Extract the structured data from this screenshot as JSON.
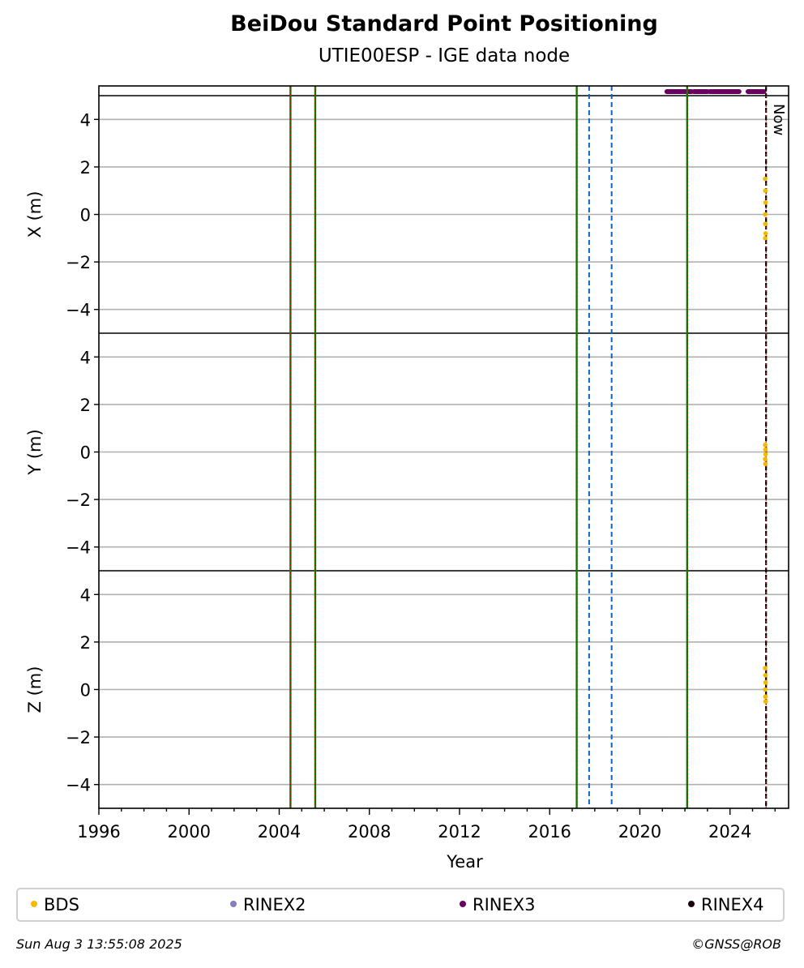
{
  "chart_data": {
    "type": "scatter",
    "title": "BeiDou Standard Point Positioning",
    "subtitle": "UTIE00ESP - IGE data node",
    "xlabel": "Year",
    "xlim": [
      1996.0,
      2026.6
    ],
    "x_ticks": [
      1996,
      2000,
      2004,
      2008,
      2012,
      2016,
      2020,
      2024
    ],
    "x_tick_labels": [
      "1996",
      "2000",
      "2004",
      "2008",
      "2012",
      "2016",
      "2020",
      "2024"
    ],
    "panels": [
      {
        "ylabel": "X (m)",
        "ylim": [
          -5,
          5
        ],
        "bds_points": [
          [
            2025.56,
            1.5
          ],
          [
            2025.57,
            1.0
          ],
          [
            2025.58,
            0.5
          ],
          [
            2025.56,
            0.0
          ],
          [
            2025.57,
            -0.4
          ],
          [
            2025.58,
            -0.8
          ],
          [
            2025.56,
            -1.0
          ]
        ]
      },
      {
        "ylabel": "Y (m)",
        "ylim": [
          -5,
          5
        ],
        "bds_points": [
          [
            2025.56,
            0.3
          ],
          [
            2025.57,
            0.1
          ],
          [
            2025.58,
            -0.1
          ],
          [
            2025.56,
            -0.3
          ],
          [
            2025.57,
            -0.5
          ]
        ]
      },
      {
        "ylabel": "Z (m)",
        "ylim": [
          -5,
          5
        ],
        "bds_points": [
          [
            2025.56,
            0.9
          ],
          [
            2025.57,
            0.6
          ],
          [
            2025.58,
            0.3
          ],
          [
            2025.56,
            0.0
          ],
          [
            2025.57,
            -0.3
          ],
          [
            2025.58,
            -0.5
          ]
        ]
      }
    ],
    "y_ticks": [
      4,
      2,
      0,
      -2,
      -4
    ],
    "y_tick_labels": [
      "4",
      "2",
      "0",
      "−2",
      "−4"
    ],
    "event_lines_green_red": [
      2004.5,
      2005.6,
      2017.2,
      2022.1
    ],
    "event_lines_blue_dashed": [
      2017.75,
      2018.75
    ],
    "now_line": 2025.6,
    "now_label": "Now",
    "rinex3_coverage": [
      [
        2021.2,
        2022.3
      ],
      [
        2022.4,
        2023.0
      ],
      [
        2023.1,
        2024.4
      ],
      [
        2024.8,
        2025.5
      ]
    ],
    "legend": [
      {
        "label": "BDS",
        "color": "#f5b800"
      },
      {
        "label": "RINEX2",
        "color": "#8080c0"
      },
      {
        "label": "RINEX3",
        "color": "#6a0060"
      },
      {
        "label": "RINEX4",
        "color": "#1a0010"
      }
    ],
    "grid": true,
    "legend_position": "bottom"
  },
  "footer": {
    "date": "Sun Aug  3 13:55:08 2025",
    "copyright": "©GNSS@ROB"
  },
  "colors": {
    "bds": "#f5b800",
    "rinex3": "#6a0060",
    "green_line": "#008000",
    "red_line": "#e00000",
    "blue_line": "#1060c0",
    "grid": "#b0b0b0"
  }
}
